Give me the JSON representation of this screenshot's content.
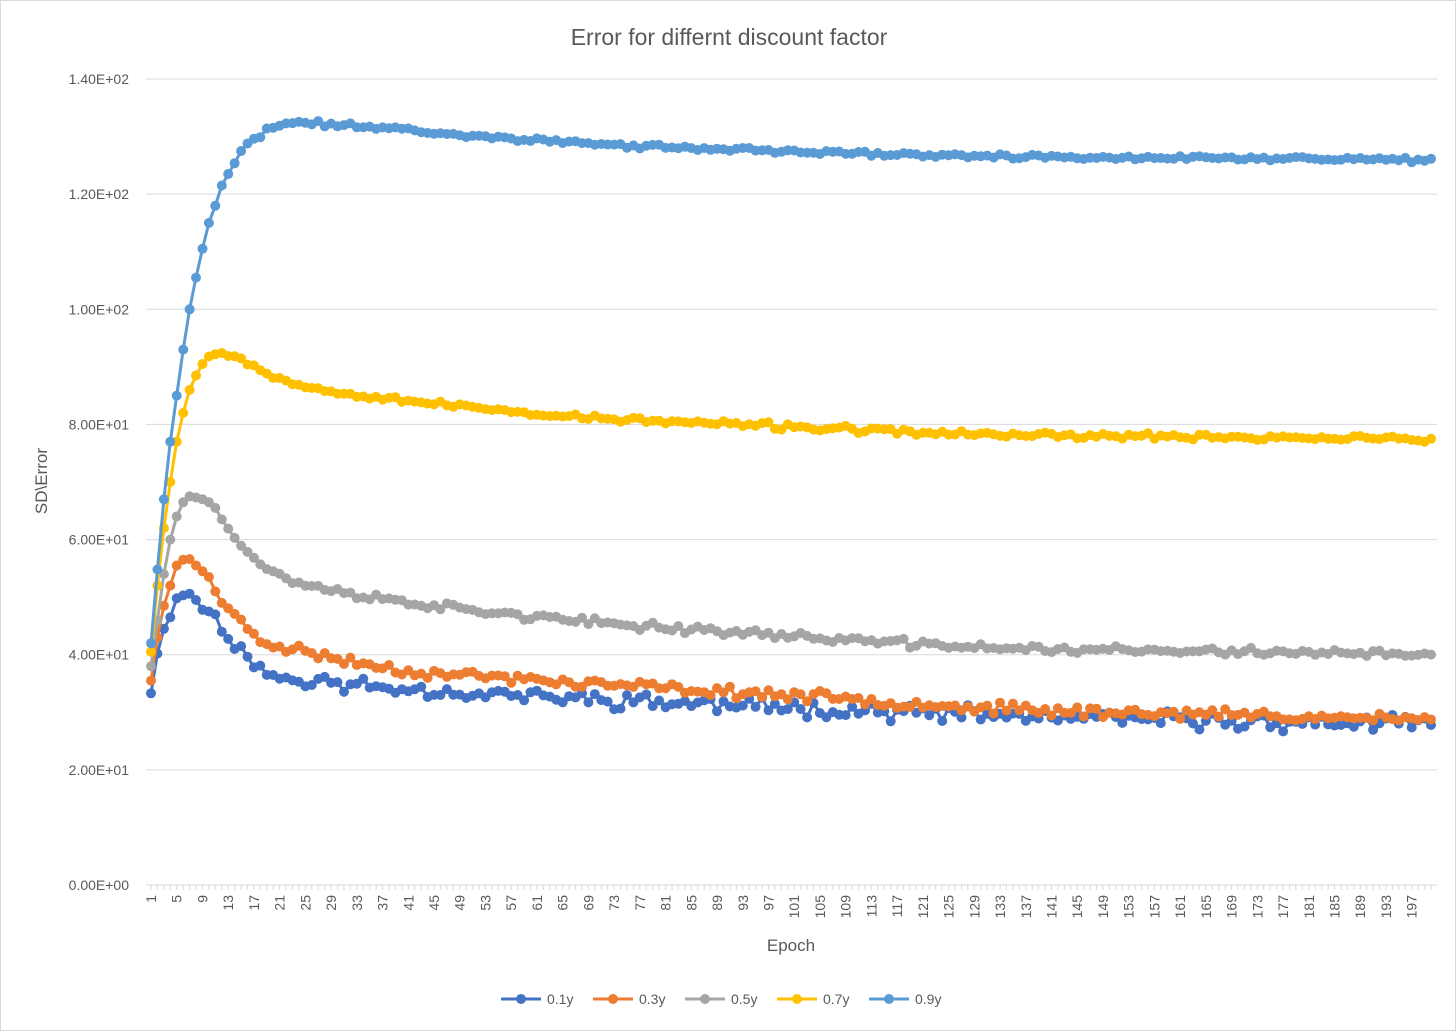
{
  "chart_data": {
    "type": "line",
    "title": "Error for differnt discount factor",
    "xlabel": "Epoch",
    "ylabel": "SD\\Error",
    "ylim": [
      0,
      140
    ],
    "y_ticks": [
      0,
      20,
      40,
      60,
      80,
      100,
      120,
      140
    ],
    "y_tick_labels": [
      "0.00E+00",
      "2.00E+01",
      "4.00E+01",
      "6.00E+01",
      "8.00E+01",
      "1.00E+02",
      "1.20E+02",
      "1.40E+02"
    ],
    "x_range": [
      1,
      200
    ],
    "x_tick_labels": [
      "1",
      "5",
      "9",
      "13",
      "17",
      "21",
      "25",
      "29",
      "33",
      "37",
      "41",
      "45",
      "49",
      "53",
      "57",
      "61",
      "65",
      "69",
      "73",
      "77",
      "81",
      "85",
      "89",
      "93",
      "97",
      "101",
      "105",
      "109",
      "113",
      "117",
      "121",
      "125",
      "129",
      "133",
      "137",
      "141",
      "145",
      "149",
      "153",
      "157",
      "161",
      "165",
      "169",
      "173",
      "177",
      "181",
      "185",
      "189",
      "193",
      "197"
    ],
    "grid": true,
    "legend_position": "bottom",
    "series": [
      {
        "name": "0.1y",
        "color": "#4472C4",
        "keypoints": [
          [
            1,
            33.3
          ],
          [
            2,
            40.2
          ],
          [
            3,
            44.5
          ],
          [
            4,
            46.5
          ],
          [
            5,
            49.8
          ],
          [
            6,
            50.3
          ],
          [
            7,
            50.6
          ],
          [
            8,
            49.5
          ],
          [
            9,
            47.8
          ],
          [
            10,
            47.5
          ],
          [
            11,
            47.0
          ],
          [
            12,
            44.0
          ],
          [
            13,
            43.6
          ],
          [
            14,
            42.0
          ],
          [
            15,
            40.5
          ],
          [
            16,
            40.0
          ],
          [
            17,
            39.0
          ],
          [
            18,
            38.0
          ],
          [
            19,
            37.0
          ],
          [
            20,
            36.2
          ],
          [
            25,
            35.5
          ],
          [
            30,
            35.0
          ],
          [
            35,
            34.5
          ],
          [
            40,
            34.2
          ],
          [
            45,
            33.8
          ],
          [
            50,
            33.3
          ],
          [
            55,
            33.2
          ],
          [
            60,
            32.8
          ],
          [
            65,
            32.5
          ],
          [
            70,
            32.3
          ],
          [
            75,
            32.1
          ],
          [
            80,
            31.8
          ],
          [
            85,
            31.5
          ],
          [
            90,
            31.3
          ],
          [
            95,
            31.1
          ],
          [
            100,
            30.9
          ],
          [
            110,
            30.4
          ],
          [
            120,
            29.9
          ],
          [
            130,
            29.5
          ],
          [
            140,
            29.1
          ],
          [
            150,
            28.8
          ],
          [
            160,
            28.6
          ],
          [
            170,
            28.4
          ],
          [
            180,
            28.2
          ],
          [
            190,
            28.1
          ],
          [
            200,
            28.0
          ]
        ],
        "noise": 1.1,
        "seed": 11
      },
      {
        "name": "0.3y",
        "color": "#ED7D31",
        "keypoints": [
          [
            1,
            35.5
          ],
          [
            2,
            43.0
          ],
          [
            3,
            48.5
          ],
          [
            4,
            52.0
          ],
          [
            5,
            55.5
          ],
          [
            6,
            56.5
          ],
          [
            7,
            56.6
          ],
          [
            8,
            55.5
          ],
          [
            9,
            54.5
          ],
          [
            10,
            53.5
          ],
          [
            11,
            51.0
          ],
          [
            12,
            49.0
          ],
          [
            13,
            48.5
          ],
          [
            14,
            47.0
          ],
          [
            15,
            45.5
          ],
          [
            16,
            44.5
          ],
          [
            17,
            43.5
          ],
          [
            18,
            42.5
          ],
          [
            19,
            42.0
          ],
          [
            20,
            41.8
          ],
          [
            25,
            40.5
          ],
          [
            30,
            39.3
          ],
          [
            35,
            38.2
          ],
          [
            40,
            37.3
          ],
          [
            45,
            36.8
          ],
          [
            50,
            36.4
          ],
          [
            55,
            36.1
          ],
          [
            60,
            35.7
          ],
          [
            65,
            35.3
          ],
          [
            70,
            34.9
          ],
          [
            75,
            34.6
          ],
          [
            80,
            34.3
          ],
          [
            85,
            33.9
          ],
          [
            90,
            33.6
          ],
          [
            95,
            33.3
          ],
          [
            100,
            33.0
          ],
          [
            110,
            32.3
          ],
          [
            120,
            31.5
          ],
          [
            130,
            30.8
          ],
          [
            140,
            30.3
          ],
          [
            150,
            30.0
          ],
          [
            160,
            29.8
          ],
          [
            170,
            29.6
          ],
          [
            180,
            29.3
          ],
          [
            190,
            29.0
          ],
          [
            200,
            28.7
          ]
        ],
        "noise": 0.7,
        "seed": 23
      },
      {
        "name": "0.5y",
        "color": "#A5A5A5",
        "keypoints": [
          [
            1,
            38.0
          ],
          [
            2,
            46.0
          ],
          [
            3,
            54.0
          ],
          [
            4,
            60.0
          ],
          [
            5,
            64.0
          ],
          [
            6,
            66.5
          ],
          [
            7,
            67.5
          ],
          [
            8,
            67.3
          ],
          [
            9,
            67.0
          ],
          [
            10,
            66.5
          ],
          [
            11,
            65.5
          ],
          [
            12,
            63.5
          ],
          [
            13,
            62.0
          ],
          [
            14,
            61.0
          ],
          [
            15,
            59.5
          ],
          [
            16,
            58.0
          ],
          [
            17,
            56.8
          ],
          [
            18,
            56.0
          ],
          [
            19,
            55.0
          ],
          [
            20,
            54.3
          ],
          [
            25,
            52.0
          ],
          [
            30,
            51.0
          ],
          [
            35,
            50.0
          ],
          [
            40,
            49.3
          ],
          [
            45,
            48.5
          ],
          [
            50,
            47.8
          ],
          [
            55,
            47.3
          ],
          [
            60,
            46.7
          ],
          [
            65,
            46.0
          ],
          [
            70,
            45.5
          ],
          [
            75,
            45.2
          ],
          [
            80,
            44.8
          ],
          [
            85,
            44.5
          ],
          [
            90,
            44.0
          ],
          [
            95,
            43.7
          ],
          [
            100,
            43.3
          ],
          [
            110,
            42.6
          ],
          [
            120,
            41.8
          ],
          [
            130,
            41.3
          ],
          [
            140,
            41.0
          ],
          [
            150,
            40.8
          ],
          [
            160,
            40.6
          ],
          [
            170,
            40.5
          ],
          [
            180,
            40.4
          ],
          [
            190,
            40.2
          ],
          [
            200,
            39.8
          ]
        ],
        "noise": 0.55,
        "seed": 37
      },
      {
        "name": "0.7y",
        "color": "#FFC000",
        "keypoints": [
          [
            1,
            40.5
          ],
          [
            2,
            52.0
          ],
          [
            3,
            62.0
          ],
          [
            4,
            70.0
          ],
          [
            5,
            77.0
          ],
          [
            6,
            82.0
          ],
          [
            7,
            86.0
          ],
          [
            8,
            88.5
          ],
          [
            9,
            90.5
          ],
          [
            10,
            91.8
          ],
          [
            11,
            92.2
          ],
          [
            12,
            92.4
          ],
          [
            13,
            92.3
          ],
          [
            14,
            92.0
          ],
          [
            15,
            91.5
          ],
          [
            16,
            90.8
          ],
          [
            17,
            90.2
          ],
          [
            18,
            89.5
          ],
          [
            19,
            89.0
          ],
          [
            20,
            88.5
          ],
          [
            25,
            86.5
          ],
          [
            30,
            85.6
          ],
          [
            35,
            85.0
          ],
          [
            40,
            84.3
          ],
          [
            45,
            83.6
          ],
          [
            50,
            83.0
          ],
          [
            55,
            82.5
          ],
          [
            60,
            82.0
          ],
          [
            65,
            81.5
          ],
          [
            70,
            81.1
          ],
          [
            75,
            80.8
          ],
          [
            80,
            80.5
          ],
          [
            85,
            80.3
          ],
          [
            90,
            80.1
          ],
          [
            95,
            79.9
          ],
          [
            100,
            79.6
          ],
          [
            110,
            79.1
          ],
          [
            120,
            78.6
          ],
          [
            130,
            78.3
          ],
          [
            140,
            78.1
          ],
          [
            150,
            78.0
          ],
          [
            160,
            77.9
          ],
          [
            170,
            77.8
          ],
          [
            180,
            77.7
          ],
          [
            190,
            77.6
          ],
          [
            200,
            77.2
          ]
        ],
        "noise": 0.4,
        "seed": 53
      },
      {
        "name": "0.9y",
        "color": "#5B9BD5",
        "keypoints": [
          [
            1,
            42.0
          ],
          [
            2,
            54.8
          ],
          [
            3,
            67.0
          ],
          [
            4,
            77.0
          ],
          [
            5,
            85.0
          ],
          [
            6,
            93.0
          ],
          [
            7,
            100.0
          ],
          [
            8,
            105.5
          ],
          [
            9,
            110.5
          ],
          [
            10,
            115.0
          ],
          [
            11,
            118.0
          ],
          [
            12,
            121.5
          ],
          [
            13,
            123.5
          ],
          [
            14,
            125.5
          ],
          [
            15,
            127.3
          ],
          [
            16,
            128.5
          ],
          [
            17,
            129.5
          ],
          [
            18,
            130.2
          ],
          [
            19,
            131.2
          ],
          [
            20,
            131.6
          ],
          [
            21,
            131.9
          ],
          [
            22,
            132.2
          ],
          [
            23,
            132.3
          ],
          [
            24,
            132.4
          ],
          [
            25,
            132.4
          ],
          [
            26,
            132.3
          ],
          [
            30,
            132.1
          ],
          [
            35,
            131.7
          ],
          [
            40,
            131.3
          ],
          [
            45,
            130.7
          ],
          [
            50,
            130.2
          ],
          [
            55,
            129.9
          ],
          [
            60,
            129.5
          ],
          [
            65,
            129.1
          ],
          [
            70,
            128.7
          ],
          [
            75,
            128.4
          ],
          [
            80,
            128.2
          ],
          [
            85,
            128.0
          ],
          [
            90,
            127.8
          ],
          [
            95,
            127.6
          ],
          [
            100,
            127.4
          ],
          [
            110,
            127.1
          ],
          [
            120,
            126.8
          ],
          [
            130,
            126.6
          ],
          [
            140,
            126.5
          ],
          [
            150,
            126.4
          ],
          [
            160,
            126.3
          ],
          [
            170,
            126.2
          ],
          [
            180,
            126.2
          ],
          [
            190,
            126.1
          ],
          [
            200,
            125.8
          ]
        ],
        "noise": 0.3,
        "seed": 71
      }
    ]
  }
}
